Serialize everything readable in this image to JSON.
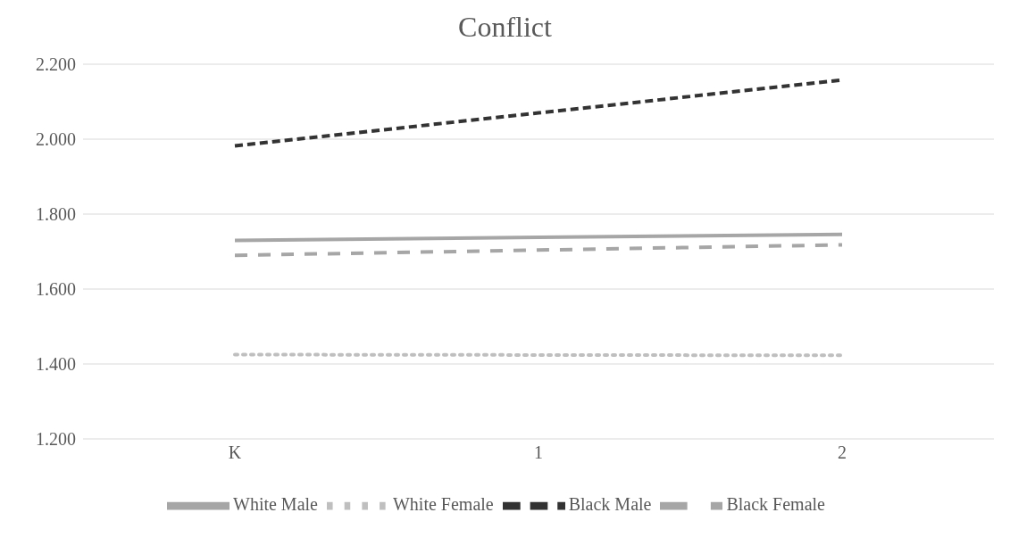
{
  "chart_data": {
    "type": "line",
    "title": "Conflict",
    "categories": [
      "K",
      "1",
      "2"
    ],
    "series": [
      {
        "name": "White Male",
        "color": "#a6a6a6",
        "line_style": "solid",
        "values": [
          1.73,
          1.738,
          1.746
        ]
      },
      {
        "name": "White Female",
        "color": "#bfbfbf",
        "line_style": "dotted",
        "values": [
          1.425,
          1.424,
          1.423
        ]
      },
      {
        "name": "Black Male",
        "color": "#333333",
        "line_style": "dashed",
        "values": [
          1.982,
          2.07,
          2.158
        ]
      },
      {
        "name": "Black Female",
        "color": "#a6a6a6",
        "line_style": "dashed",
        "values": [
          1.69,
          1.704,
          1.718
        ]
      }
    ],
    "ylim": [
      1.2,
      2.2
    ],
    "yticks": [
      {
        "value": 1.2,
        "label": "1.200"
      },
      {
        "value": 1.4,
        "label": "1.400"
      },
      {
        "value": 1.6,
        "label": "1.600"
      },
      {
        "value": 1.8,
        "label": "1.800"
      },
      {
        "value": 2.0,
        "label": "2.000"
      },
      {
        "value": 2.2,
        "label": "2.200"
      }
    ],
    "grid": "y",
    "legend": "bottom",
    "marker": "none"
  }
}
